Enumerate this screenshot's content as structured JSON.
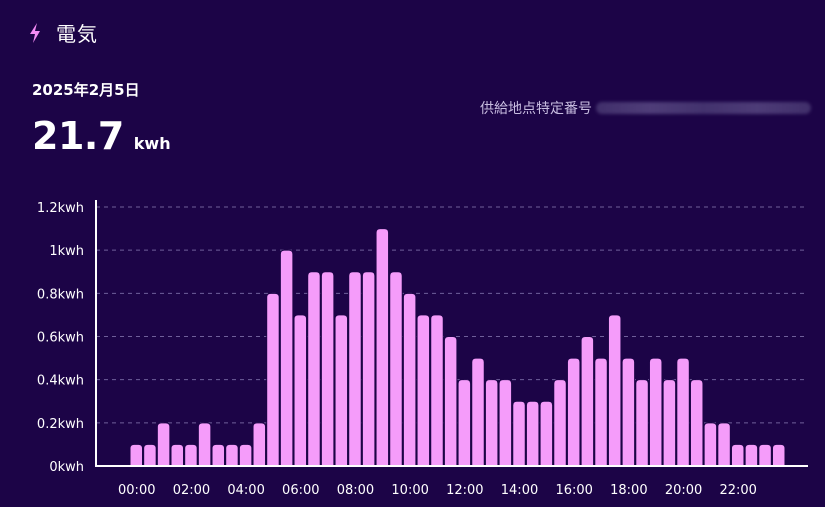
{
  "header": {
    "icon": "lightning-bolt-icon",
    "icon_color": "#f48cf6",
    "title": "電気"
  },
  "summary": {
    "date": "2025年2月5日",
    "total_value": "21.7",
    "total_unit": "kwh"
  },
  "supply_point": {
    "label": "供給地点特定番号"
  },
  "colors": {
    "background": "#1c0447",
    "bar_fill": "#f59cfa",
    "bar_stroke": "#1c0447",
    "grid": "#6f5f9a",
    "axis": "#ffffff"
  },
  "chart_data": {
    "type": "bar",
    "title": "",
    "xlabel": "",
    "ylabel": "",
    "ylim": [
      0,
      1.2
    ],
    "y_ticks": [
      0,
      0.2,
      0.4,
      0.6,
      0.8,
      1.0,
      1.2
    ],
    "y_tick_labels": [
      "0kwh",
      "0.2kwh",
      "0.4kwh",
      "0.6kwh",
      "0.8kwh",
      "1kwh",
      "1.2kwh"
    ],
    "x_tick_labels": [
      "00:00",
      "02:00",
      "04:00",
      "06:00",
      "08:00",
      "10:00",
      "12:00",
      "14:00",
      "16:00",
      "18:00",
      "20:00",
      "22:00"
    ],
    "interval_minutes": 30,
    "grid": true,
    "values": [
      0.1,
      0.1,
      0.2,
      0.1,
      0.1,
      0.2,
      0.1,
      0.1,
      0.1,
      0.2,
      0.8,
      1.0,
      0.7,
      0.9,
      0.9,
      0.7,
      0.9,
      0.9,
      1.1,
      0.9,
      0.8,
      0.7,
      0.7,
      0.6,
      0.4,
      0.5,
      0.4,
      0.4,
      0.3,
      0.3,
      0.3,
      0.4,
      0.5,
      0.6,
      0.5,
      0.7,
      0.5,
      0.4,
      0.5,
      0.4,
      0.5,
      0.4,
      0.2,
      0.2,
      0.1,
      0.1,
      0.1,
      0.1
    ]
  }
}
